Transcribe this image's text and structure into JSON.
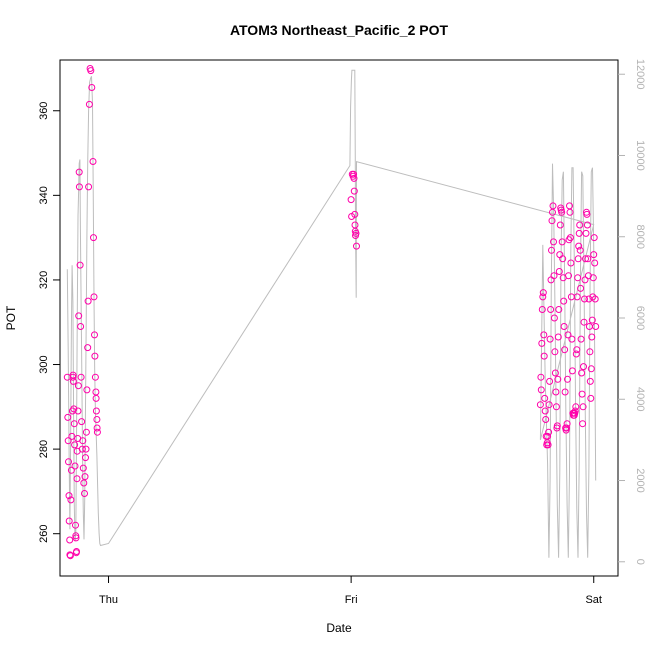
{
  "chart_data": {
    "type": "scatter",
    "title": "ATOM3 Northeast_Pacific_2 POT",
    "xlabel": "Date",
    "ylabel": "POT",
    "x_ticks": [
      {
        "label": "Thu",
        "value": 0.0
      },
      {
        "label": "Fri",
        "value": 1.0
      },
      {
        "label": "Sat",
        "value": 2.0
      }
    ],
    "y_ticks": [
      260,
      280,
      300,
      320,
      340,
      360
    ],
    "y2_ticks": [
      0,
      2000,
      4000,
      6000,
      8000,
      10000,
      12000
    ],
    "xlim": [
      -0.2,
      2.1
    ],
    "ylim": [
      250,
      372
    ],
    "y2lim": [
      -350,
      12350
    ],
    "colors": {
      "points": "#ff00aa",
      "secondary": "#b3b3b3"
    },
    "series": [
      {
        "marker": "circle",
        "points": [
          [
            -0.17,
            297.0
          ],
          [
            -0.168,
            287.5
          ],
          [
            -0.166,
            282.0
          ],
          [
            -0.165,
            277.0
          ],
          [
            -0.163,
            269.0
          ],
          [
            -0.162,
            263.0
          ],
          [
            -0.16,
            258.5
          ],
          [
            -0.159,
            255.0
          ],
          [
            -0.157,
            254.8
          ],
          [
            -0.155,
            268.0
          ],
          [
            -0.153,
            275.0
          ],
          [
            -0.151,
            283.0
          ],
          [
            -0.149,
            289.0
          ],
          [
            -0.147,
            297.0
          ],
          [
            -0.146,
            297.5
          ],
          [
            -0.145,
            296.0
          ],
          [
            -0.143,
            289.5
          ],
          [
            -0.141,
            286.0
          ],
          [
            -0.14,
            281.0
          ],
          [
            -0.138,
            276.0
          ],
          [
            -0.136,
            262.0
          ],
          [
            -0.135,
            259.5
          ],
          [
            -0.134,
            259.0
          ],
          [
            -0.133,
            255.5
          ],
          [
            -0.132,
            255.8
          ],
          [
            -0.13,
            273.0
          ],
          [
            -0.129,
            279.5
          ],
          [
            -0.127,
            282.5
          ],
          [
            -0.126,
            289.0
          ],
          [
            -0.124,
            295.0
          ],
          [
            -0.123,
            311.5
          ],
          [
            -0.121,
            345.5
          ],
          [
            -0.12,
            342.0
          ],
          [
            -0.117,
            323.5
          ],
          [
            -0.115,
            309.0
          ],
          [
            -0.113,
            297.0
          ],
          [
            -0.111,
            286.5
          ],
          [
            -0.108,
            280.0
          ],
          [
            -0.106,
            282.0
          ],
          [
            -0.104,
            275.5
          ],
          [
            -0.102,
            272.0
          ],
          [
            -0.099,
            269.5
          ],
          [
            -0.097,
            273.5
          ],
          [
            -0.095,
            278.0
          ],
          [
            -0.093,
            280.0
          ],
          [
            -0.091,
            284.0
          ],
          [
            -0.089,
            294.0
          ],
          [
            -0.086,
            304.0
          ],
          [
            -0.084,
            315.0
          ],
          [
            -0.082,
            342.0
          ],
          [
            -0.079,
            361.5
          ],
          [
            -0.076,
            370.0
          ],
          [
            -0.073,
            369.5
          ],
          [
            -0.069,
            365.5
          ],
          [
            -0.064,
            348.0
          ],
          [
            -0.062,
            330.0
          ],
          [
            -0.06,
            316.0
          ],
          [
            -0.058,
            307.0
          ],
          [
            -0.056,
            302.0
          ],
          [
            -0.054,
            297.0
          ],
          [
            -0.052,
            293.5
          ],
          [
            -0.051,
            292.0
          ],
          [
            -0.05,
            289.0
          ],
          [
            -0.048,
            287.0
          ],
          [
            -0.047,
            285.0
          ],
          [
            -0.046,
            284.0
          ],
          [
            1.005,
            345.0
          ],
          [
            1.008,
            344.5
          ],
          [
            1.01,
            345.0
          ],
          [
            1.012,
            344.0
          ],
          [
            1.0,
            339.0
          ],
          [
            1.002,
            335.0
          ],
          [
            1.013,
            341.0
          ],
          [
            1.015,
            335.5
          ],
          [
            1.016,
            333.0
          ],
          [
            1.017,
            331.5
          ],
          [
            1.018,
            330.5
          ],
          [
            1.02,
            331.0
          ],
          [
            1.022,
            328.0
          ],
          [
            1.78,
            290.5
          ],
          [
            1.782,
            297.0
          ],
          [
            1.784,
            294.0
          ],
          [
            1.786,
            305.0
          ],
          [
            1.788,
            313.0
          ],
          [
            1.79,
            316.0
          ],
          [
            1.792,
            317.0
          ],
          [
            1.794,
            307.0
          ],
          [
            1.796,
            302.0
          ],
          [
            1.798,
            292.0
          ],
          [
            1.8,
            289.0
          ],
          [
            1.802,
            287.0
          ],
          [
            1.804,
            283.0
          ],
          [
            1.806,
            281.0
          ],
          [
            1.808,
            281.5
          ],
          [
            1.81,
            283.0
          ],
          [
            1.812,
            281.0
          ],
          [
            1.814,
            284.0
          ],
          [
            1.816,
            290.5
          ],
          [
            1.818,
            296.0
          ],
          [
            1.82,
            306.0
          ],
          [
            1.822,
            313.0
          ],
          [
            1.824,
            320.0
          ],
          [
            1.826,
            327.0
          ],
          [
            1.828,
            334.0
          ],
          [
            1.83,
            336.0
          ],
          [
            1.832,
            337.5
          ],
          [
            1.834,
            329.0
          ],
          [
            1.836,
            321.0
          ],
          [
            1.838,
            311.0
          ],
          [
            1.84,
            303.0
          ],
          [
            1.842,
            298.0
          ],
          [
            1.844,
            293.5
          ],
          [
            1.846,
            290.0
          ],
          [
            1.848,
            285.0
          ],
          [
            1.85,
            285.5
          ],
          [
            1.852,
            296.5
          ],
          [
            1.854,
            306.5
          ],
          [
            1.856,
            313.0
          ],
          [
            1.858,
            322.0
          ],
          [
            1.86,
            326.0
          ],
          [
            1.862,
            333.0
          ],
          [
            1.864,
            337.0
          ],
          [
            1.866,
            336.5
          ],
          [
            1.868,
            336.0
          ],
          [
            1.87,
            329.0
          ],
          [
            1.872,
            325.0
          ],
          [
            1.874,
            320.5
          ],
          [
            1.876,
            315.0
          ],
          [
            1.878,
            309.0
          ],
          [
            1.88,
            303.5
          ],
          [
            1.882,
            293.5
          ],
          [
            1.884,
            285.0
          ],
          [
            1.886,
            284.5
          ],
          [
            1.888,
            285.0
          ],
          [
            1.89,
            286.0
          ],
          [
            1.892,
            296.5
          ],
          [
            1.894,
            307.0
          ],
          [
            1.896,
            321.0
          ],
          [
            1.898,
            329.5
          ],
          [
            1.9,
            337.5
          ],
          [
            1.902,
            336.0
          ],
          [
            1.904,
            330.0
          ],
          [
            1.906,
            324.0
          ],
          [
            1.908,
            316.0
          ],
          [
            1.91,
            306.0
          ],
          [
            1.912,
            298.5
          ],
          [
            1.914,
            288.5
          ],
          [
            1.916,
            288.0
          ],
          [
            1.918,
            288.5
          ],
          [
            1.92,
            288.0
          ],
          [
            1.922,
            288.5
          ],
          [
            1.924,
            289.0
          ],
          [
            1.926,
            290.0
          ],
          [
            1.928,
            302.5
          ],
          [
            1.93,
            303.5
          ],
          [
            1.932,
            316.0
          ],
          [
            1.934,
            320.5
          ],
          [
            1.936,
            325.0
          ],
          [
            1.938,
            328.0
          ],
          [
            1.94,
            331.0
          ],
          [
            1.942,
            333.0
          ],
          [
            1.944,
            327.0
          ],
          [
            1.946,
            318.0
          ],
          [
            1.948,
            306.0
          ],
          [
            1.95,
            298.0
          ],
          [
            1.952,
            293.0
          ],
          [
            1.954,
            286.0
          ],
          [
            1.956,
            290.0
          ],
          [
            1.958,
            299.5
          ],
          [
            1.96,
            310.0
          ],
          [
            1.962,
            315.5
          ],
          [
            1.964,
            320.0
          ],
          [
            1.966,
            325.0
          ],
          [
            1.968,
            331.0
          ],
          [
            1.97,
            336.0
          ],
          [
            1.972,
            335.5
          ],
          [
            1.974,
            333.0
          ],
          [
            1.976,
            325.0
          ],
          [
            1.978,
            321.0
          ],
          [
            1.98,
            315.5
          ],
          [
            1.982,
            309.0
          ],
          [
            1.984,
            303.0
          ],
          [
            1.986,
            296.0
          ],
          [
            1.988,
            292.0
          ],
          [
            1.99,
            299.0
          ],
          [
            1.992,
            306.5
          ],
          [
            1.994,
            310.5
          ],
          [
            1.996,
            316.0
          ],
          [
            1.998,
            320.5
          ],
          [
            2.0,
            326.0
          ],
          [
            2.002,
            330.0
          ],
          [
            2.004,
            324.0
          ],
          [
            2.006,
            315.5
          ],
          [
            2.008,
            309.0
          ]
        ]
      },
      {
        "axis": "right",
        "line": true,
        "points": [
          [
            -0.17,
            7200
          ],
          [
            -0.166,
            5200
          ],
          [
            -0.162,
            2400
          ],
          [
            -0.159,
            800
          ],
          [
            -0.156,
            3200
          ],
          [
            -0.153,
            5800
          ],
          [
            -0.15,
            7300
          ],
          [
            -0.147,
            6400
          ],
          [
            -0.144,
            3600
          ],
          [
            -0.141,
            1400
          ],
          [
            -0.138,
            500
          ],
          [
            -0.135,
            700
          ],
          [
            -0.132,
            2900
          ],
          [
            -0.129,
            5800
          ],
          [
            -0.126,
            8500
          ],
          [
            -0.123,
            9200
          ],
          [
            -0.121,
            9800
          ],
          [
            -0.118,
            9900
          ],
          [
            -0.116,
            8200
          ],
          [
            -0.113,
            6400
          ],
          [
            -0.11,
            4700
          ],
          [
            -0.107,
            2500
          ],
          [
            -0.104,
            1200
          ],
          [
            -0.101,
            550
          ],
          [
            -0.098,
            1500
          ],
          [
            -0.095,
            3800
          ],
          [
            -0.092,
            5900
          ],
          [
            -0.089,
            8000
          ],
          [
            -0.086,
            9800
          ],
          [
            -0.082,
            11100
          ],
          [
            -0.078,
            11800
          ],
          [
            -0.074,
            11900
          ],
          [
            -0.07,
            11950
          ],
          [
            -0.066,
            11300
          ],
          [
            -0.063,
            9200
          ],
          [
            -0.06,
            6500
          ],
          [
            -0.057,
            4700
          ],
          [
            -0.054,
            3700
          ],
          [
            -0.051,
            3200
          ],
          [
            -0.048,
            2600
          ],
          [
            -0.045,
            1900
          ],
          [
            -0.042,
            1200
          ],
          [
            -0.039,
            700
          ],
          [
            -0.036,
            450
          ],
          [
            -0.033,
            400
          ],
          [
            0.0,
            450
          ],
          [
            0.995,
            9750
          ],
          [
            0.998,
            11200
          ],
          [
            1.001,
            11850
          ],
          [
            1.003,
            12100
          ],
          [
            1.015,
            12100
          ],
          [
            1.017,
            9800
          ],
          [
            1.018,
            8300
          ],
          [
            1.019,
            7700
          ],
          [
            1.02,
            7000
          ],
          [
            1.021,
            6500
          ],
          [
            1.022,
            9850
          ],
          [
            2.0,
            8300
          ],
          [
            1.78,
            3000
          ],
          [
            1.79,
            7800
          ],
          [
            1.8,
            4500
          ],
          [
            1.81,
            2400
          ],
          [
            1.815,
            100
          ],
          [
            1.82,
            2000
          ],
          [
            1.825,
            6800
          ],
          [
            1.83,
            9800
          ],
          [
            1.835,
            8600
          ],
          [
            1.84,
            6400
          ],
          [
            1.845,
            3800
          ],
          [
            1.85,
            1400
          ],
          [
            1.855,
            100
          ],
          [
            1.86,
            2200
          ],
          [
            1.865,
            7400
          ],
          [
            1.87,
            9400
          ],
          [
            1.875,
            9600
          ],
          [
            1.88,
            7000
          ],
          [
            1.885,
            3800
          ],
          [
            1.89,
            1400
          ],
          [
            1.895,
            100
          ],
          [
            1.9,
            2200
          ],
          [
            1.905,
            7400
          ],
          [
            1.91,
            9700
          ],
          [
            1.915,
            9700
          ],
          [
            1.92,
            7400
          ],
          [
            1.925,
            4000
          ],
          [
            1.93,
            1300
          ],
          [
            1.935,
            100
          ],
          [
            1.94,
            2400
          ],
          [
            1.945,
            7000
          ],
          [
            1.95,
            9600
          ],
          [
            1.955,
            9500
          ],
          [
            1.96,
            7000
          ],
          [
            1.965,
            3800
          ],
          [
            1.97,
            1200
          ],
          [
            1.975,
            100
          ],
          [
            1.98,
            2300
          ],
          [
            1.985,
            6900
          ],
          [
            1.99,
            9600
          ],
          [
            1.995,
            9700
          ],
          [
            2.0,
            7800
          ],
          [
            2.005,
            4300
          ],
          [
            2.008,
            2000
          ]
        ]
      }
    ]
  }
}
